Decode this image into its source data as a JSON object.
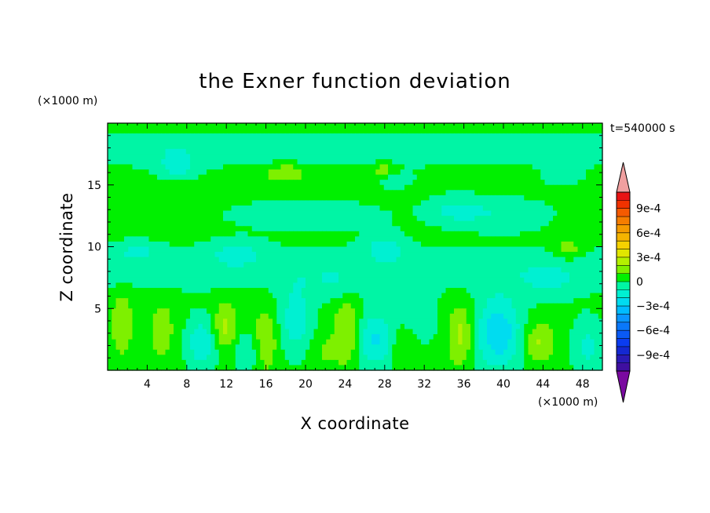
{
  "chart_data": {
    "type": "heatmap",
    "title": "the Exner function deviation",
    "xlabel": "X coordinate",
    "ylabel": "Z coordinate",
    "x_unit": "(×1000 m)",
    "y_unit": "(×1000 m)",
    "time_label": "t=540000 s",
    "xlim": [
      0,
      50
    ],
    "ylim": [
      0,
      20
    ],
    "x_ticks": [
      4,
      8,
      12,
      16,
      20,
      24,
      28,
      32,
      36,
      40,
      44,
      48
    ],
    "x_tick_labels": [
      "4",
      "8",
      "12",
      "16",
      "20",
      "24",
      "28",
      "32",
      "36",
      "40",
      "44",
      "48"
    ],
    "y_ticks": [
      5,
      10,
      15
    ],
    "y_tick_labels": [
      "5",
      "10",
      "15"
    ],
    "grid": false,
    "colorbar": {
      "labels": [
        "9e-4",
        "6e-4",
        "3e-4",
        "0",
        "−3e-4",
        "−6e-4",
        "−9e-4"
      ],
      "label_values": [
        0.0009,
        0.0006,
        0.0003,
        0,
        -0.0003,
        -0.0006,
        -0.0009
      ],
      "levels": [
        -0.0011,
        -0.001,
        -0.0009,
        -0.0008,
        -0.0007,
        -0.0006,
        -0.0005,
        -0.0004,
        -0.0003,
        -0.0002,
        -0.0001,
        0,
        0.0001,
        0.0002,
        0.0003,
        0.0004,
        0.0005,
        0.0006,
        0.0007,
        0.0008,
        0.0009,
        0.001,
        0.0011
      ],
      "colors": [
        "#7a0aa0",
        "#3f0fa0",
        "#2a1ab5",
        "#1428d2",
        "#0a3cf0",
        "#0a5af5",
        "#0a78fa",
        "#0a96ff",
        "#00bcff",
        "#00dcf0",
        "#00f0d2",
        "#00f5a5",
        "#00f000",
        "#7ef000",
        "#b4f000",
        "#e1e600",
        "#f5d200",
        "#f5b400",
        "#f59b00",
        "#f57d00",
        "#f55a00",
        "#f03200",
        "#e81414",
        "#f0a0a0"
      ],
      "under_color": "#7a0aa0",
      "over_color": "#f0a0a0"
    }
  }
}
